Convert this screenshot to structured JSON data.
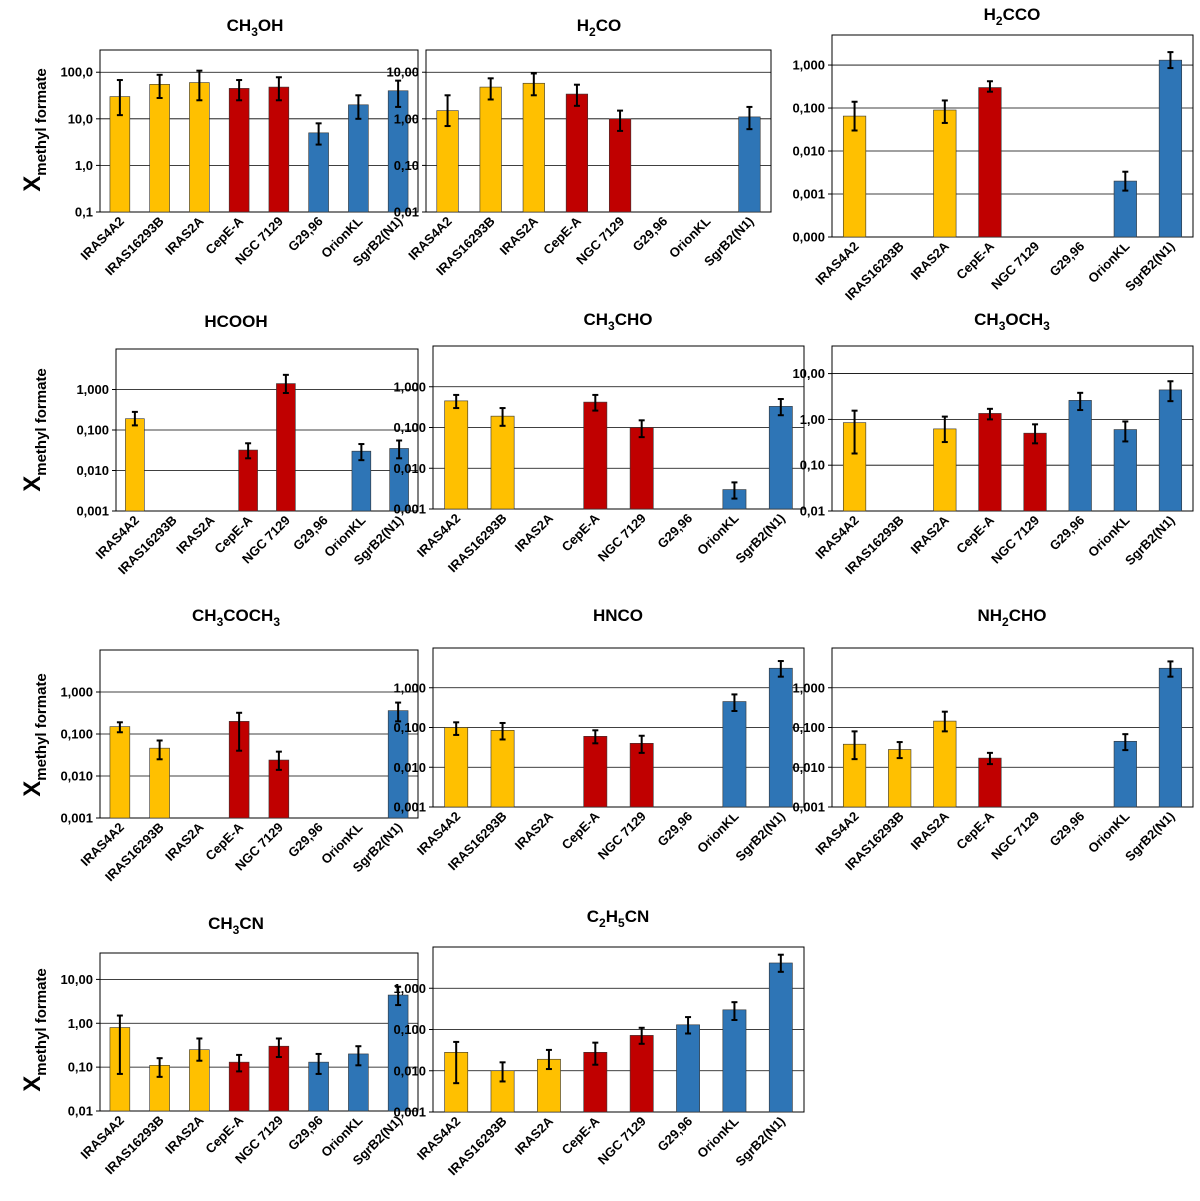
{
  "figure": {
    "ylabel": "X",
    "ylabel_sub": "methyl formate"
  },
  "colors": {
    "Class 0": "#FFC000",
    "intermediate": "#C00000",
    "high-mass": "#2E75B6"
  },
  "categories": [
    "IRAS4A2",
    "IRAS16293B",
    "IRAS2A",
    "CepE-A",
    "NGC 7129",
    "G29,96",
    "OrionKL",
    "SgrB2(N1)"
  ],
  "category_colors": [
    "#FFC000",
    "#FFC000",
    "#FFC000",
    "#C00000",
    "#C00000",
    "#2E75B6",
    "#2E75B6",
    "#2E75B6"
  ],
  "chart_data": [
    {
      "type": "bar",
      "title": "CH3OH",
      "title_parts": [
        {
          "t": "CH"
        },
        {
          "t": "3",
          "sub": true
        },
        {
          "t": "OH"
        }
      ],
      "yscale": "log",
      "ylim": [
        0.1,
        300
      ],
      "yticks": [
        0.1,
        1,
        10,
        100
      ],
      "ytick_labels": [
        "0,1",
        "1,0",
        "10,0",
        "100,0"
      ],
      "values": [
        30,
        55,
        60,
        45,
        48,
        5,
        20,
        40
      ],
      "err_low": [
        12,
        28,
        25,
        25,
        25,
        2.8,
        10,
        18
      ],
      "err_high": [
        68,
        88,
        108,
        68,
        78,
        8,
        32,
        66
      ]
    },
    {
      "type": "bar",
      "title": "H2CO",
      "title_parts": [
        {
          "t": "H"
        },
        {
          "t": "2",
          "sub": true
        },
        {
          "t": "CO"
        }
      ],
      "yscale": "log",
      "ylim": [
        0.01,
        30
      ],
      "yticks": [
        0.01,
        0.1,
        1,
        10
      ],
      "ytick_labels": [
        "0,01",
        "0,10",
        "1,00",
        "10,00"
      ],
      "values": [
        1.5,
        4.8,
        5.8,
        3.4,
        1.0,
        null,
        null,
        1.1
      ],
      "err_low": [
        0.7,
        2.6,
        3.2,
        1.9,
        0.55,
        null,
        null,
        0.6
      ],
      "err_high": [
        3.2,
        7.4,
        9.4,
        5.4,
        1.5,
        null,
        null,
        1.8
      ]
    },
    {
      "type": "bar",
      "title": "H2CCO",
      "title_parts": [
        {
          "t": "H"
        },
        {
          "t": "2",
          "sub": true
        },
        {
          "t": "CCO"
        }
      ],
      "yscale": "log",
      "ylim": [
        0.0001,
        5
      ],
      "yticks": [
        0.0001,
        0.001,
        0.01,
        0.1,
        1
      ],
      "ytick_labels": [
        "0,000",
        "0,001",
        "0,010",
        "0,100",
        "1,000"
      ],
      "values": [
        0.065,
        null,
        0.09,
        0.3,
        null,
        null,
        0.002,
        1.3
      ],
      "err_low": [
        0.03,
        null,
        0.045,
        0.24,
        null,
        null,
        0.0012,
        0.85
      ],
      "err_high": [
        0.14,
        null,
        0.15,
        0.42,
        null,
        null,
        0.0033,
        2.0
      ]
    },
    {
      "type": "bar",
      "title": "HCOOH",
      "title_parts": [
        {
          "t": "HCOOH"
        }
      ],
      "yscale": "log",
      "ylim": [
        0.001,
        10
      ],
      "yticks": [
        0.001,
        0.01,
        0.1,
        1
      ],
      "ytick_labels": [
        "0,001",
        "0,010",
        "0,100",
        "1,000"
      ],
      "values": [
        0.19,
        null,
        null,
        0.032,
        1.4,
        null,
        0.03,
        0.035
      ],
      "err_low": [
        0.13,
        null,
        null,
        0.02,
        0.82,
        null,
        0.018,
        0.02
      ],
      "err_high": [
        0.28,
        null,
        null,
        0.047,
        2.3,
        null,
        0.045,
        0.055
      ]
    },
    {
      "type": "bar",
      "title": "CH3CHO",
      "title_parts": [
        {
          "t": "CH"
        },
        {
          "t": "3",
          "sub": true
        },
        {
          "t": "CHO"
        }
      ],
      "yscale": "log",
      "ylim": [
        0.001,
        10
      ],
      "yticks": [
        0.001,
        0.01,
        0.1,
        1
      ],
      "ytick_labels": [
        "0,001",
        "0,010",
        "0,100",
        "1,000"
      ],
      "values": [
        0.45,
        0.19,
        null,
        0.42,
        0.1,
        null,
        0.003,
        0.33
      ],
      "err_low": [
        0.3,
        0.11,
        null,
        0.26,
        0.058,
        null,
        0.0018,
        0.2
      ],
      "err_high": [
        0.63,
        0.3,
        null,
        0.63,
        0.15,
        null,
        0.0045,
        0.5
      ]
    },
    {
      "type": "bar",
      "title": "CH3OCH3",
      "title_parts": [
        {
          "t": "CH"
        },
        {
          "t": "3",
          "sub": true
        },
        {
          "t": "OCH"
        },
        {
          "t": "3",
          "sub": true
        }
      ],
      "yscale": "log",
      "ylim": [
        0.01,
        40
      ],
      "yticks": [
        0.01,
        0.1,
        1,
        10
      ],
      "ytick_labels": [
        "0,01",
        "0,10",
        "1,00",
        "10,00"
      ],
      "values": [
        0.85,
        null,
        0.62,
        1.35,
        0.5,
        2.6,
        0.6,
        4.4
      ],
      "err_low": [
        0.18,
        null,
        0.32,
        1.0,
        0.3,
        1.6,
        0.33,
        2.5
      ],
      "err_high": [
        1.55,
        null,
        1.15,
        1.7,
        0.78,
        3.8,
        0.9,
        6.8
      ]
    },
    {
      "type": "bar",
      "title": "CH3COCH3",
      "title_parts": [
        {
          "t": "CH"
        },
        {
          "t": "3",
          "sub": true
        },
        {
          "t": "COCH"
        },
        {
          "t": "3",
          "sub": true
        }
      ],
      "yscale": "log",
      "ylim": [
        0.001,
        10
      ],
      "yticks": [
        0.001,
        0.01,
        0.1,
        1
      ],
      "ytick_labels": [
        "0,001",
        "0,010",
        "0,100",
        "1,000"
      ],
      "values": [
        0.15,
        0.046,
        null,
        0.2,
        0.024,
        null,
        null,
        0.36
      ],
      "err_low": [
        0.11,
        0.025,
        null,
        0.04,
        0.014,
        null,
        null,
        0.2
      ],
      "err_high": [
        0.19,
        0.07,
        null,
        0.32,
        0.038,
        null,
        null,
        0.56
      ]
    },
    {
      "type": "bar",
      "title": "HNCO",
      "title_parts": [
        {
          "t": "HNCO"
        }
      ],
      "yscale": "log",
      "ylim": [
        0.001,
        10
      ],
      "yticks": [
        0.001,
        0.01,
        0.1,
        1
      ],
      "ytick_labels": [
        "0,001",
        "0,010",
        "0,100",
        "1,000"
      ],
      "values": [
        0.1,
        0.085,
        null,
        0.06,
        0.04,
        null,
        0.45,
        3.1
      ],
      "err_low": [
        0.065,
        0.05,
        null,
        0.04,
        0.023,
        null,
        0.26,
        1.9
      ],
      "err_high": [
        0.135,
        0.13,
        null,
        0.085,
        0.062,
        null,
        0.68,
        4.7
      ]
    },
    {
      "type": "bar",
      "title": "NH2CHO",
      "title_parts": [
        {
          "t": "NH"
        },
        {
          "t": "2",
          "sub": true
        },
        {
          "t": "CHO"
        }
      ],
      "yscale": "log",
      "ylim": [
        0.001,
        10
      ],
      "yticks": [
        0.001,
        0.01,
        0.1,
        1
      ],
      "ytick_labels": [
        "0,001",
        "0,010",
        "0,100",
        "1,000"
      ],
      "values": [
        0.038,
        0.028,
        0.145,
        0.017,
        null,
        null,
        0.045,
        3.1
      ],
      "err_low": [
        0.016,
        0.017,
        0.08,
        0.012,
        null,
        null,
        0.027,
        1.9
      ],
      "err_high": [
        0.08,
        0.043,
        0.25,
        0.023,
        null,
        null,
        0.068,
        4.6
      ]
    },
    {
      "type": "bar",
      "title": "CH3CN",
      "title_parts": [
        {
          "t": "CH"
        },
        {
          "t": "3",
          "sub": true
        },
        {
          "t": "CN"
        }
      ],
      "yscale": "log",
      "ylim": [
        0.01,
        40
      ],
      "yticks": [
        0.01,
        0.1,
        1,
        10
      ],
      "ytick_labels": [
        "0,01",
        "0,10",
        "1,00",
        "10,00"
      ],
      "values": [
        0.8,
        0.11,
        0.25,
        0.13,
        0.3,
        0.13,
        0.2,
        4.4
      ],
      "err_low": [
        0.07,
        0.06,
        0.14,
        0.08,
        0.17,
        0.07,
        0.11,
        2.6
      ],
      "err_high": [
        1.5,
        0.16,
        0.45,
        0.19,
        0.45,
        0.2,
        0.3,
        6.8
      ]
    },
    {
      "type": "bar",
      "title": "C2H5CN",
      "title_parts": [
        {
          "t": "C"
        },
        {
          "t": "2",
          "sub": true
        },
        {
          "t": "H"
        },
        {
          "t": "5",
          "sub": true
        },
        {
          "t": "CN"
        }
      ],
      "yscale": "log",
      "ylim": [
        0.001,
        10
      ],
      "yticks": [
        0.001,
        0.01,
        0.1,
        1
      ],
      "ytick_labels": [
        "0,001",
        "0,010",
        "0,100",
        "1,000"
      ],
      "values": [
        0.028,
        0.01,
        0.019,
        0.028,
        0.072,
        0.13,
        0.3,
        4.1
      ],
      "err_low": [
        0.005,
        0.0055,
        0.011,
        0.014,
        0.045,
        0.08,
        0.17,
        2.5
      ],
      "err_high": [
        0.05,
        0.016,
        0.032,
        0.048,
        0.11,
        0.2,
        0.46,
        6.5
      ]
    }
  ]
}
